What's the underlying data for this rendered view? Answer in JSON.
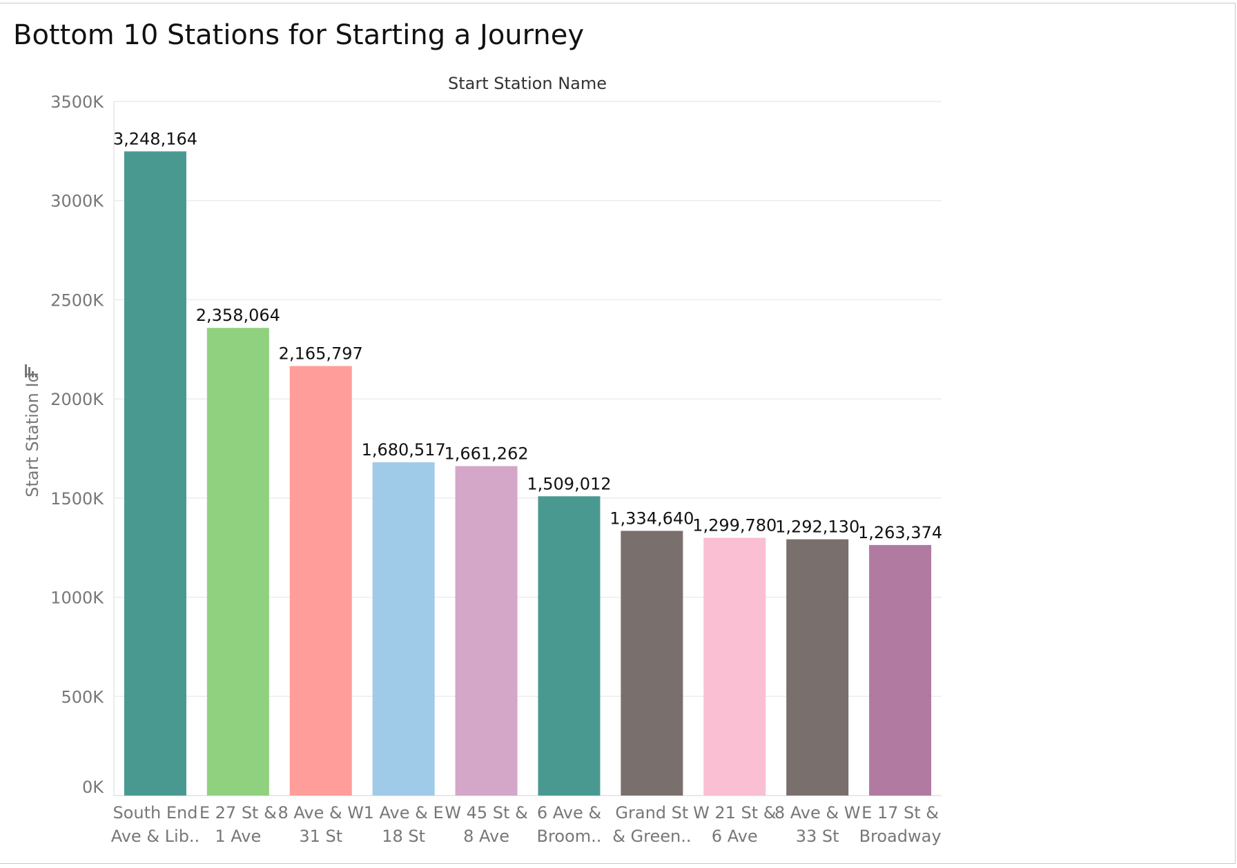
{
  "page": {
    "title": "Bottom 10 Stations for Starting a Journey"
  },
  "chart_data": {
    "type": "bar",
    "title": "Bottom 10 Stations for Starting a Journey",
    "column_header": "Start Station Name",
    "xlabel": "",
    "ylabel": "Start Station Id",
    "ylim": [
      0,
      3500000
    ],
    "y_ticks": [
      0,
      500000,
      1000000,
      1500000,
      2000000,
      2500000,
      3000000,
      3500000
    ],
    "y_tick_labels": [
      "0K",
      "500K",
      "1000K",
      "1500K",
      "2000K",
      "2500K",
      "3000K",
      "3500K"
    ],
    "grid": true,
    "categories": [
      [
        "South End",
        "Ave & Lib.."
      ],
      [
        "E 27 St &",
        "1 Ave"
      ],
      [
        "8 Ave & W",
        "31 St"
      ],
      [
        "1 Ave & E",
        "18 St"
      ],
      [
        "W 45 St &",
        "8 Ave"
      ],
      [
        "6 Ave &",
        "Broom.."
      ],
      [
        "Grand St",
        "& Green.."
      ],
      [
        "W 21 St &",
        "6 Ave"
      ],
      [
        "8 Ave & W",
        "33 St"
      ],
      [
        "E 17 St &",
        "Broadway"
      ]
    ],
    "values": [
      3248164,
      2358064,
      2165797,
      1680517,
      1661262,
      1509012,
      1334640,
      1299780,
      1292130,
      1263374
    ],
    "value_labels": [
      "3,248,164",
      "2,358,064",
      "2,165,797",
      "1,680,517",
      "1,661,262",
      "1,509,012",
      "1,334,640",
      "1,299,780",
      "1,292,130",
      "1,263,374"
    ],
    "colors": [
      "#4a9990",
      "#8fd17e",
      "#ff9d9a",
      "#a0cbe8",
      "#d4a6c8",
      "#4a9990",
      "#79706e",
      "#fabfd2",
      "#79706e",
      "#b07aa1"
    ]
  }
}
